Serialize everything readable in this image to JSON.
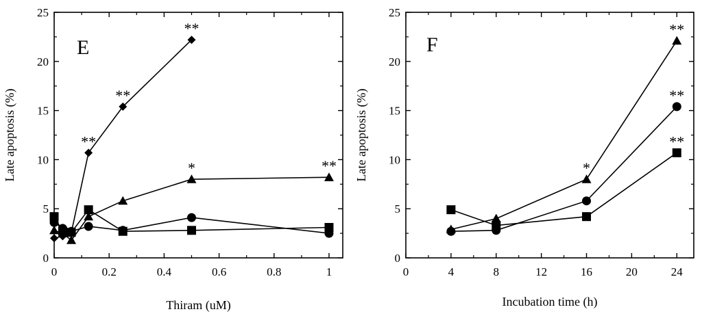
{
  "chart_data": [
    {
      "panel": "E",
      "type": "line",
      "title": "",
      "xlabel": "Thiram (uM)",
      "ylabel": "Late apoptosis (%)",
      "xlim": [
        0,
        1.05
      ],
      "ylim": [
        0,
        25
      ],
      "xticks": [
        0,
        0.2,
        0.4,
        0.6,
        0.8,
        1
      ],
      "xtick_labels": [
        "0",
        "0.2",
        "0.4",
        "0.6",
        "0.8",
        "1"
      ],
      "yticks": [
        0,
        5,
        10,
        15,
        20,
        25
      ],
      "ytick_labels": [
        "0",
        "5",
        "10",
        "15",
        "20",
        "25"
      ],
      "series": [
        {
          "name": "diamond",
          "marker": "diamond",
          "points": [
            [
              0,
              2.0
            ],
            [
              0.031,
              2.2
            ],
            [
              0.0625,
              2.6
            ],
            [
              0.125,
              10.7
            ],
            [
              0.25,
              15.4
            ],
            [
              0.5,
              22.2
            ]
          ]
        },
        {
          "name": "triangle",
          "marker": "triangle",
          "points": [
            [
              0,
              2.8
            ],
            [
              0.031,
              2.5
            ],
            [
              0.0625,
              1.8
            ],
            [
              0.125,
              4.2
            ],
            [
              0.25,
              5.8
            ],
            [
              0.5,
              8.0
            ],
            [
              1,
              8.2
            ]
          ]
        },
        {
          "name": "circle",
          "marker": "circle",
          "points": [
            [
              0,
              3.6
            ],
            [
              0.031,
              3.0
            ],
            [
              0.0625,
              2.7
            ],
            [
              0.125,
              3.2
            ],
            [
              0.25,
              2.8
            ],
            [
              0.5,
              4.1
            ],
            [
              1,
              2.5
            ]
          ]
        },
        {
          "name": "square",
          "marker": "square",
          "points": [
            [
              0,
              4.2
            ],
            [
              0.031,
              2.7
            ],
            [
              0.0625,
              2.6
            ],
            [
              0.125,
              4.9
            ],
            [
              0.25,
              2.7
            ],
            [
              0.5,
              2.8
            ],
            [
              1,
              3.1
            ]
          ]
        }
      ],
      "annotations": [
        {
          "text": "**",
          "x": 0.125,
          "y": 10.7
        },
        {
          "text": "**",
          "x": 0.25,
          "y": 15.4
        },
        {
          "text": "**",
          "x": 0.5,
          "y": 22.2
        },
        {
          "text": "*",
          "x": 0.5,
          "y": 8.0
        },
        {
          "text": "**",
          "x": 1,
          "y": 8.2
        }
      ]
    },
    {
      "panel": "F",
      "type": "line",
      "title": "",
      "xlabel": "Incubation time (h)",
      "ylabel": "Late apoptosis (%)",
      "xlim": [
        0,
        25.5
      ],
      "ylim": [
        0,
        25
      ],
      "xticks": [
        0,
        4,
        8,
        12,
        16,
        20,
        24
      ],
      "xtick_labels": [
        "0",
        "4",
        "8",
        "12",
        "16",
        "20",
        "24"
      ],
      "yticks": [
        0,
        5,
        10,
        15,
        20,
        25
      ],
      "ytick_labels": [
        "0",
        "5",
        "10",
        "15",
        "20",
        "25"
      ],
      "series": [
        {
          "name": "triangle",
          "marker": "triangle",
          "points": [
            [
              4,
              2.9
            ],
            [
              8,
              4.0
            ],
            [
              16,
              8.0
            ],
            [
              24,
              22.1
            ]
          ]
        },
        {
          "name": "circle",
          "marker": "circle",
          "points": [
            [
              4,
              2.7
            ],
            [
              8,
              2.8
            ],
            [
              16,
              5.8
            ],
            [
              24,
              15.4
            ]
          ]
        },
        {
          "name": "square",
          "marker": "square",
          "points": [
            [
              4,
              4.9
            ],
            [
              8,
              3.3
            ],
            [
              16,
              4.2
            ],
            [
              24,
              10.7
            ]
          ]
        }
      ],
      "annotations": [
        {
          "text": "*",
          "x": 16,
          "y": 8.0
        },
        {
          "text": "**",
          "x": 24,
          "y": 22.1
        },
        {
          "text": "**",
          "x": 24,
          "y": 15.4
        },
        {
          "text": "**",
          "x": 24,
          "y": 10.7
        }
      ]
    }
  ]
}
